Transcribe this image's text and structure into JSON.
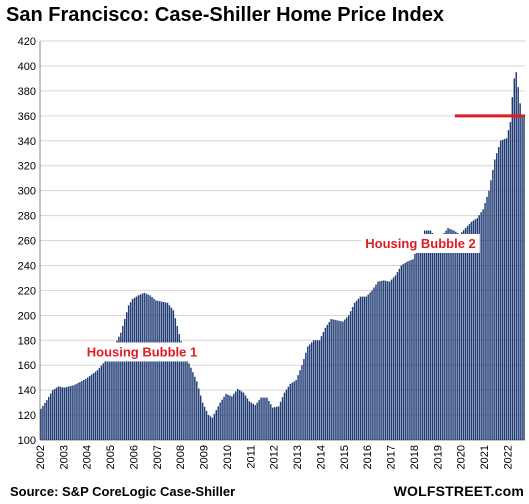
{
  "chart_data": {
    "type": "bar",
    "title": "San Francisco: Case-Shiller Home Price Index",
    "xlabel": "",
    "ylabel": "",
    "ylim": [
      100,
      420
    ],
    "yticks": [
      100,
      120,
      140,
      160,
      180,
      200,
      220,
      240,
      260,
      280,
      300,
      320,
      340,
      360,
      380,
      400,
      420
    ],
    "grid": true,
    "legend": "none",
    "bar_color": "#1f3b73",
    "x_tick_labels": [
      "2002",
      "2003",
      "2004",
      "2005",
      "2006",
      "2007",
      "2008",
      "2009",
      "2010",
      "2011",
      "2012",
      "2013",
      "2014",
      "2015",
      "2016",
      "2017",
      "2018",
      "2019",
      "2020",
      "2021",
      "2022"
    ],
    "keyframes": [
      [
        "2002-01",
        125
      ],
      [
        "2002-04",
        132
      ],
      [
        "2002-07",
        140
      ],
      [
        "2002-10",
        143
      ],
      [
        "2003-01",
        142
      ],
      [
        "2003-06",
        144
      ],
      [
        "2003-12",
        149
      ],
      [
        "2004-06",
        156
      ],
      [
        "2004-12",
        167
      ],
      [
        "2005-06",
        186
      ],
      [
        "2005-10",
        208
      ],
      [
        "2005-12",
        213
      ],
      [
        "2006-03",
        216
      ],
      [
        "2006-06",
        218
      ],
      [
        "2006-09",
        216
      ],
      [
        "2006-12",
        212
      ],
      [
        "2007-03",
        211
      ],
      [
        "2007-06",
        210
      ],
      [
        "2007-09",
        204
      ],
      [
        "2007-12",
        185
      ],
      [
        "2008-03",
        168
      ],
      [
        "2008-06",
        158
      ],
      [
        "2008-09",
        147
      ],
      [
        "2008-12",
        130
      ],
      [
        "2009-03",
        120
      ],
      [
        "2009-05",
        118
      ],
      [
        "2009-09",
        130
      ],
      [
        "2009-12",
        137
      ],
      [
        "2010-03",
        135
      ],
      [
        "2010-06",
        141
      ],
      [
        "2010-09",
        138
      ],
      [
        "2010-12",
        131
      ],
      [
        "2011-03",
        128
      ],
      [
        "2011-06",
        134
      ],
      [
        "2011-09",
        134
      ],
      [
        "2011-12",
        126
      ],
      [
        "2012-03",
        127
      ],
      [
        "2012-06",
        138
      ],
      [
        "2012-09",
        145
      ],
      [
        "2012-12",
        148
      ],
      [
        "2013-03",
        160
      ],
      [
        "2013-06",
        175
      ],
      [
        "2013-09",
        180
      ],
      [
        "2013-12",
        180
      ],
      [
        "2014-03",
        190
      ],
      [
        "2014-06",
        197
      ],
      [
        "2014-09",
        196
      ],
      [
        "2014-12",
        195
      ],
      [
        "2015-03",
        200
      ],
      [
        "2015-06",
        210
      ],
      [
        "2015-09",
        215
      ],
      [
        "2015-12",
        215
      ],
      [
        "2016-03",
        220
      ],
      [
        "2016-06",
        227
      ],
      [
        "2016-09",
        228
      ],
      [
        "2016-12",
        227
      ],
      [
        "2017-03",
        232
      ],
      [
        "2017-06",
        240
      ],
      [
        "2017-09",
        243
      ],
      [
        "2017-12",
        245
      ],
      [
        "2018-03",
        258
      ],
      [
        "2018-06",
        268
      ],
      [
        "2018-09",
        268
      ],
      [
        "2018-12",
        262
      ],
      [
        "2019-03",
        264
      ],
      [
        "2019-06",
        270
      ],
      [
        "2019-09",
        268
      ],
      [
        "2019-12",
        265
      ],
      [
        "2020-03",
        270
      ],
      [
        "2020-06",
        275
      ],
      [
        "2020-09",
        278
      ],
      [
        "2020-12",
        285
      ],
      [
        "2021-03",
        300
      ],
      [
        "2021-06",
        325
      ],
      [
        "2021-09",
        340
      ],
      [
        "2021-12",
        342
      ],
      [
        "2022-02",
        355
      ],
      [
        "2022-03",
        375
      ],
      [
        "2022-04",
        390
      ],
      [
        "2022-05",
        395
      ],
      [
        "2022-06",
        383
      ],
      [
        "2022-07",
        370
      ],
      [
        "2022-08",
        360
      ]
    ],
    "annotations": [
      {
        "text": "Housing Bubble 1",
        "x": "2004-01",
        "y": 167,
        "color": "#e01b24"
      },
      {
        "text": "Housing Bubble 2",
        "x": "2015-12",
        "y": 254,
        "color": "#e01b24"
      }
    ],
    "reference_line": {
      "value": 360,
      "from": "2019-10",
      "to": "2022-09",
      "color": "#e01b24"
    }
  },
  "footer": {
    "source": "Source: S&P CoreLogic Case-Shiller",
    "brand": "WOLFSTREET.com"
  }
}
